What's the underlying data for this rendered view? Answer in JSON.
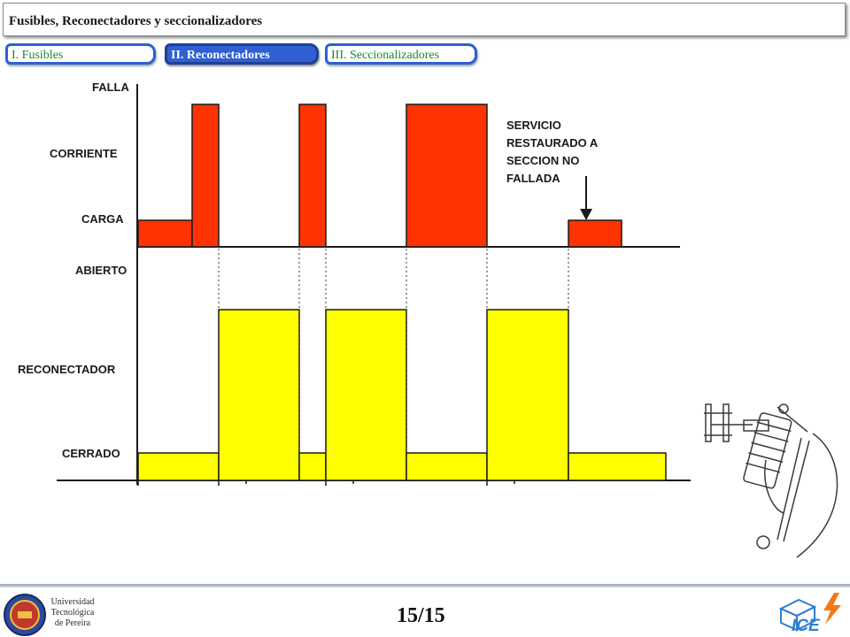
{
  "header": {
    "title": "Fusibles, Reconectadores y seccionalizadores"
  },
  "tabs": [
    {
      "label": "I. Fusibles",
      "active": false
    },
    {
      "label": "II. Reconectadores",
      "active": true
    },
    {
      "label": "III. Seccionalizadores",
      "active": false
    }
  ],
  "diagram": {
    "top_labels": {
      "falla": "FALLA",
      "corriente": "CORRIENTE",
      "carga": "CARGA"
    },
    "bottom_labels": {
      "abierto": "ABIERTO",
      "reconectador": "RECONECTADOR",
      "cerrado": "CERRADO"
    },
    "annotation": [
      "SERVICIO",
      "RESTAURADO A",
      "SECCION NO",
      "FALLADA"
    ],
    "colors": {
      "current": "#ff3300",
      "recloser": "#ffff00",
      "outline": "#1a1a1a"
    }
  },
  "footer": {
    "page": "15/15",
    "university": [
      "Universidad",
      "Tecnológica",
      "de Pereira"
    ],
    "brand": "ICE"
  }
}
